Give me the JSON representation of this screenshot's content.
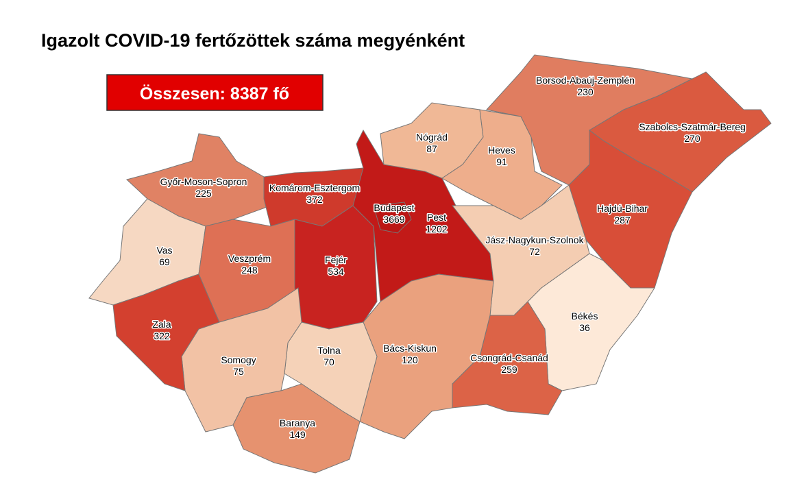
{
  "title": "Igazolt COVID-19 fertőzöttek száma megyénként",
  "total": "Összesen: 8387 fő",
  "counties": [
    {
      "name": "Győr-Moson-Sopron",
      "value": 225,
      "color": "#e08264"
    },
    {
      "name": "Komárom-Esztergom",
      "value": 372,
      "color": "#cf3a2c"
    },
    {
      "name": "Vas",
      "value": 69,
      "color": "#f6d8c2"
    },
    {
      "name": "Veszprém",
      "value": 248,
      "color": "#de7055"
    },
    {
      "name": "Fejér",
      "value": 534,
      "color": "#c82320"
    },
    {
      "name": "Pest",
      "value": 1202,
      "color": "#c21a18"
    },
    {
      "name": "Budapest",
      "value": 3669,
      "color": "#bb1614"
    },
    {
      "name": "Nógrád",
      "value": 87,
      "color": "#f0b896"
    },
    {
      "name": "Heves",
      "value": 91,
      "color": "#eeae8c"
    },
    {
      "name": "Borsod-Abaúj-Zemplén",
      "value": 230,
      "color": "#e07d60"
    },
    {
      "name": "Szabolcs-Szatmár-Bereg",
      "value": 270,
      "color": "#da5a40"
    },
    {
      "name": "Hajdú-Bihar",
      "value": 287,
      "color": "#d84e38"
    },
    {
      "name": "Jász-Nagykun-Szolnok",
      "value": 72,
      "color": "#f4cdb2"
    },
    {
      "name": "Békés",
      "value": 36,
      "color": "#fde9d8"
    },
    {
      "name": "Csongrád-Csanád",
      "value": 259,
      "color": "#dc6347"
    },
    {
      "name": "Bács-Kiskun",
      "value": 120,
      "color": "#eaa17e"
    },
    {
      "name": "Tolna",
      "value": 70,
      "color": "#f5d2b8"
    },
    {
      "name": "Somogy",
      "value": 75,
      "color": "#f2c2a5"
    },
    {
      "name": "Zala",
      "value": 322,
      "color": "#d3402f"
    },
    {
      "name": "Baranya",
      "value": 149,
      "color": "#e6926f"
    }
  ]
}
